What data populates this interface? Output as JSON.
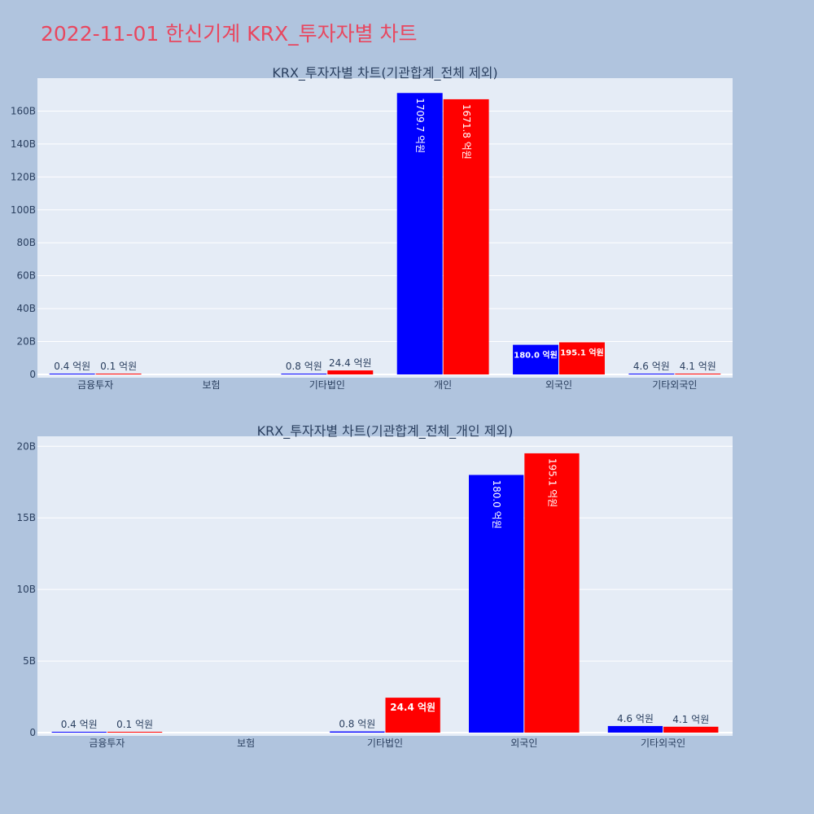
{
  "page": {
    "title": "2022-11-01 한신기계 KRX_투자자별 차트",
    "title_color": "#e8475f",
    "background": "#b0c4de",
    "plot_background": "#e5ecf6"
  },
  "chart_data": [
    {
      "type": "bar",
      "title": "KRX_투자자별 차트(기관합계_전체 제외)",
      "categories": [
        "금융투자",
        "보험",
        "기타법인",
        "개인",
        "외국인",
        "기타외국인"
      ],
      "series": [
        {
          "color": "#0000ff",
          "values": [
            40000000,
            0,
            80000000,
            170970000000,
            18000000000,
            460000000
          ],
          "labels": [
            "0.4 억원",
            "",
            "0.8 억원",
            "1709.7 억원",
            "180.0 억원",
            "4.6 억원"
          ]
        },
        {
          "color": "#ff0000",
          "values": [
            10000000,
            0,
            2440000000,
            167180000000,
            19510000000,
            410000000
          ],
          "labels": [
            "0.1 억원",
            "",
            "24.4 억원",
            "1671.8 억원",
            "195.1 억원",
            "4.1 억원"
          ]
        }
      ],
      "ylim": [
        0,
        180000000000
      ],
      "yticks": [
        0,
        20000000000,
        40000000000,
        60000000000,
        80000000000,
        100000000000,
        120000000000,
        140000000000,
        160000000000
      ],
      "ytick_labels": [
        "0",
        "20B",
        "40B",
        "60B",
        "80B",
        "100B",
        "120B",
        "140B",
        "160B"
      ],
      "xlabel": "",
      "ylabel": "",
      "grid": true
    },
    {
      "type": "bar",
      "title": "KRX_투자자별 차트(기관합계_전체_개인 제외)",
      "categories": [
        "금융투자",
        "보험",
        "기타법인",
        "외국인",
        "기타외국인"
      ],
      "series": [
        {
          "color": "#0000ff",
          "values": [
            40000000,
            0,
            80000000,
            18000000000,
            460000000
          ],
          "labels": [
            "0.4 억원",
            "",
            "0.8 억원",
            "180.0 억원",
            "4.6 억원"
          ]
        },
        {
          "color": "#ff0000",
          "values": [
            10000000,
            0,
            2440000000,
            19510000000,
            410000000
          ],
          "labels": [
            "0.1 억원",
            "",
            "24.4 억원",
            "195.1 억원",
            "4.1 억원"
          ]
        }
      ],
      "ylim": [
        0,
        20700000000
      ],
      "yticks": [
        0,
        5000000000,
        10000000000,
        15000000000,
        20000000000
      ],
      "ytick_labels": [
        "0",
        "5B",
        "10B",
        "15B",
        "20B"
      ],
      "xlabel": "",
      "ylabel": "",
      "grid": true
    }
  ]
}
